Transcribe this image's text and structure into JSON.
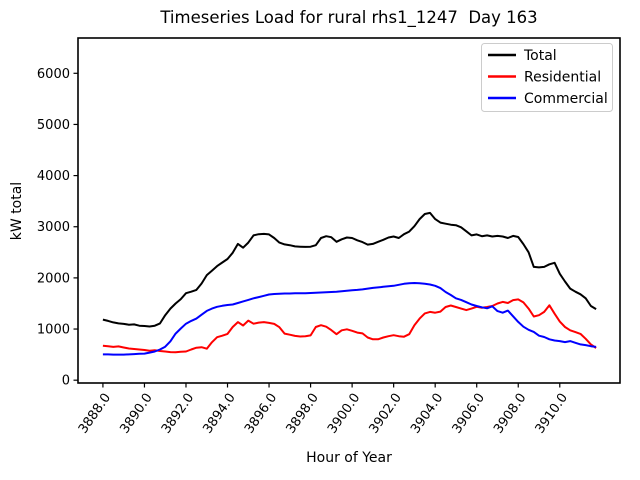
{
  "title": "Timeseries Load for rural rhs1_1247  Day 163",
  "chart_data": {
    "type": "line",
    "title": "Timeseries Load for rural rhs1_1247  Day 163",
    "xlabel": "Hour of Year",
    "ylabel": "kW total",
    "xlim": [
      3886.8,
      3912.9
    ],
    "ylim": [
      -55,
      6690
    ],
    "grid": false,
    "xticks": [
      3888,
      3890,
      3892,
      3894,
      3896,
      3898,
      3900,
      3902,
      3904,
      3906,
      3908,
      3910
    ],
    "xtick_labels": [
      "3888.0",
      "3890.0",
      "3892.0",
      "3894.0",
      "3896.0",
      "3898.0",
      "3900.0",
      "3902.0",
      "3904.0",
      "3906.0",
      "3908.0",
      "3910.0"
    ],
    "xtick_rotation_deg": 55,
    "yticks": [
      0,
      1000,
      2000,
      3000,
      4000,
      5000,
      6000
    ],
    "ytick_labels": [
      "0",
      "1000",
      "2000",
      "3000",
      "4000",
      "5000",
      "6000"
    ],
    "legend": {
      "location": "upper right",
      "entries": [
        "Total",
        "Residential",
        "Commercial"
      ],
      "edge_color": "#cccccc"
    },
    "axes_color": "#000000",
    "background_color": "#ffffff",
    "x": [
      3888.0,
      3888.25,
      3888.5,
      3888.75,
      3889.0,
      3889.25,
      3889.5,
      3889.75,
      3890.0,
      3890.25,
      3890.5,
      3890.75,
      3891.0,
      3891.25,
      3891.5,
      3891.75,
      3892.0,
      3892.25,
      3892.5,
      3892.75,
      3893.0,
      3893.25,
      3893.5,
      3893.75,
      3894.0,
      3894.25,
      3894.5,
      3894.75,
      3895.0,
      3895.25,
      3895.5,
      3895.75,
      3896.0,
      3896.25,
      3896.5,
      3896.75,
      3897.0,
      3897.25,
      3897.5,
      3897.75,
      3898.0,
      3898.25,
      3898.5,
      3898.75,
      3899.0,
      3899.25,
      3899.5,
      3899.75,
      3900.0,
      3900.25,
      3900.5,
      3900.75,
      3901.0,
      3901.25,
      3901.5,
      3901.75,
      3902.0,
      3902.25,
      3902.5,
      3902.75,
      3903.0,
      3903.25,
      3903.5,
      3903.75,
      3904.0,
      3904.25,
      3904.5,
      3904.75,
      3905.0,
      3905.25,
      3905.5,
      3905.75,
      3906.0,
      3906.25,
      3906.5,
      3906.75,
      3907.0,
      3907.25,
      3907.5,
      3907.75,
      3908.0,
      3908.25,
      3908.5,
      3908.75,
      3909.0,
      3909.25,
      3909.5,
      3909.75,
      3910.0,
      3910.25,
      3910.5,
      3910.75,
      3911.0,
      3911.25,
      3911.5,
      3911.75
    ],
    "series": [
      {
        "name": "Total",
        "color": "#000000",
        "values": [
          1185,
          1160,
          1130,
          1110,
          1100,
          1085,
          1090,
          1065,
          1060,
          1050,
          1065,
          1110,
          1270,
          1400,
          1500,
          1585,
          1700,
          1730,
          1765,
          1890,
          2055,
          2140,
          2230,
          2300,
          2370,
          2490,
          2665,
          2590,
          2690,
          2830,
          2855,
          2860,
          2850,
          2780,
          2690,
          2655,
          2640,
          2615,
          2610,
          2605,
          2610,
          2640,
          2780,
          2815,
          2795,
          2705,
          2755,
          2790,
          2780,
          2735,
          2700,
          2650,
          2665,
          2705,
          2745,
          2790,
          2810,
          2780,
          2855,
          2905,
          3010,
          3150,
          3250,
          3270,
          3150,
          3080,
          3060,
          3040,
          3030,
          2990,
          2910,
          2830,
          2850,
          2815,
          2830,
          2810,
          2820,
          2810,
          2780,
          2820,
          2800,
          2660,
          2500,
          2215,
          2205,
          2215,
          2265,
          2295,
          2080,
          1930,
          1790,
          1730,
          1680,
          1600,
          1450,
          1390
        ]
      },
      {
        "name": "Residential",
        "color": "#ff0000",
        "values": [
          675,
          665,
          650,
          660,
          640,
          620,
          610,
          600,
          590,
          575,
          585,
          570,
          560,
          550,
          545,
          555,
          560,
          600,
          635,
          645,
          615,
          740,
          840,
          870,
          905,
          1040,
          1135,
          1070,
          1165,
          1105,
          1125,
          1135,
          1120,
          1100,
          1035,
          910,
          890,
          865,
          855,
          860,
          875,
          1040,
          1075,
          1045,
          980,
          900,
          975,
          995,
          965,
          930,
          915,
          835,
          800,
          800,
          835,
          860,
          880,
          860,
          850,
          900,
          1075,
          1205,
          1305,
          1335,
          1320,
          1340,
          1430,
          1460,
          1430,
          1400,
          1370,
          1400,
          1435,
          1415,
          1430,
          1450,
          1500,
          1530,
          1510,
          1565,
          1580,
          1520,
          1400,
          1245,
          1270,
          1335,
          1465,
          1300,
          1145,
          1040,
          975,
          940,
          905,
          810,
          700,
          630
        ]
      },
      {
        "name": "Commercial",
        "color": "#0000ff",
        "values": [
          505,
          505,
          500,
          500,
          500,
          505,
          510,
          515,
          520,
          540,
          560,
          600,
          655,
          760,
          910,
          1010,
          1105,
          1160,
          1205,
          1280,
          1355,
          1400,
          1435,
          1455,
          1470,
          1480,
          1510,
          1540,
          1570,
          1600,
          1625,
          1650,
          1675,
          1685,
          1690,
          1695,
          1695,
          1700,
          1700,
          1700,
          1705,
          1710,
          1715,
          1720,
          1725,
          1730,
          1740,
          1750,
          1760,
          1765,
          1775,
          1790,
          1805,
          1815,
          1825,
          1835,
          1845,
          1865,
          1885,
          1895,
          1900,
          1895,
          1885,
          1870,
          1845,
          1800,
          1725,
          1665,
          1600,
          1570,
          1525,
          1480,
          1450,
          1425,
          1405,
          1445,
          1350,
          1320,
          1360,
          1250,
          1140,
          1045,
          985,
          945,
          870,
          845,
          800,
          775,
          765,
          745,
          765,
          730,
          700,
          685,
          665,
          650
        ]
      }
    ]
  }
}
